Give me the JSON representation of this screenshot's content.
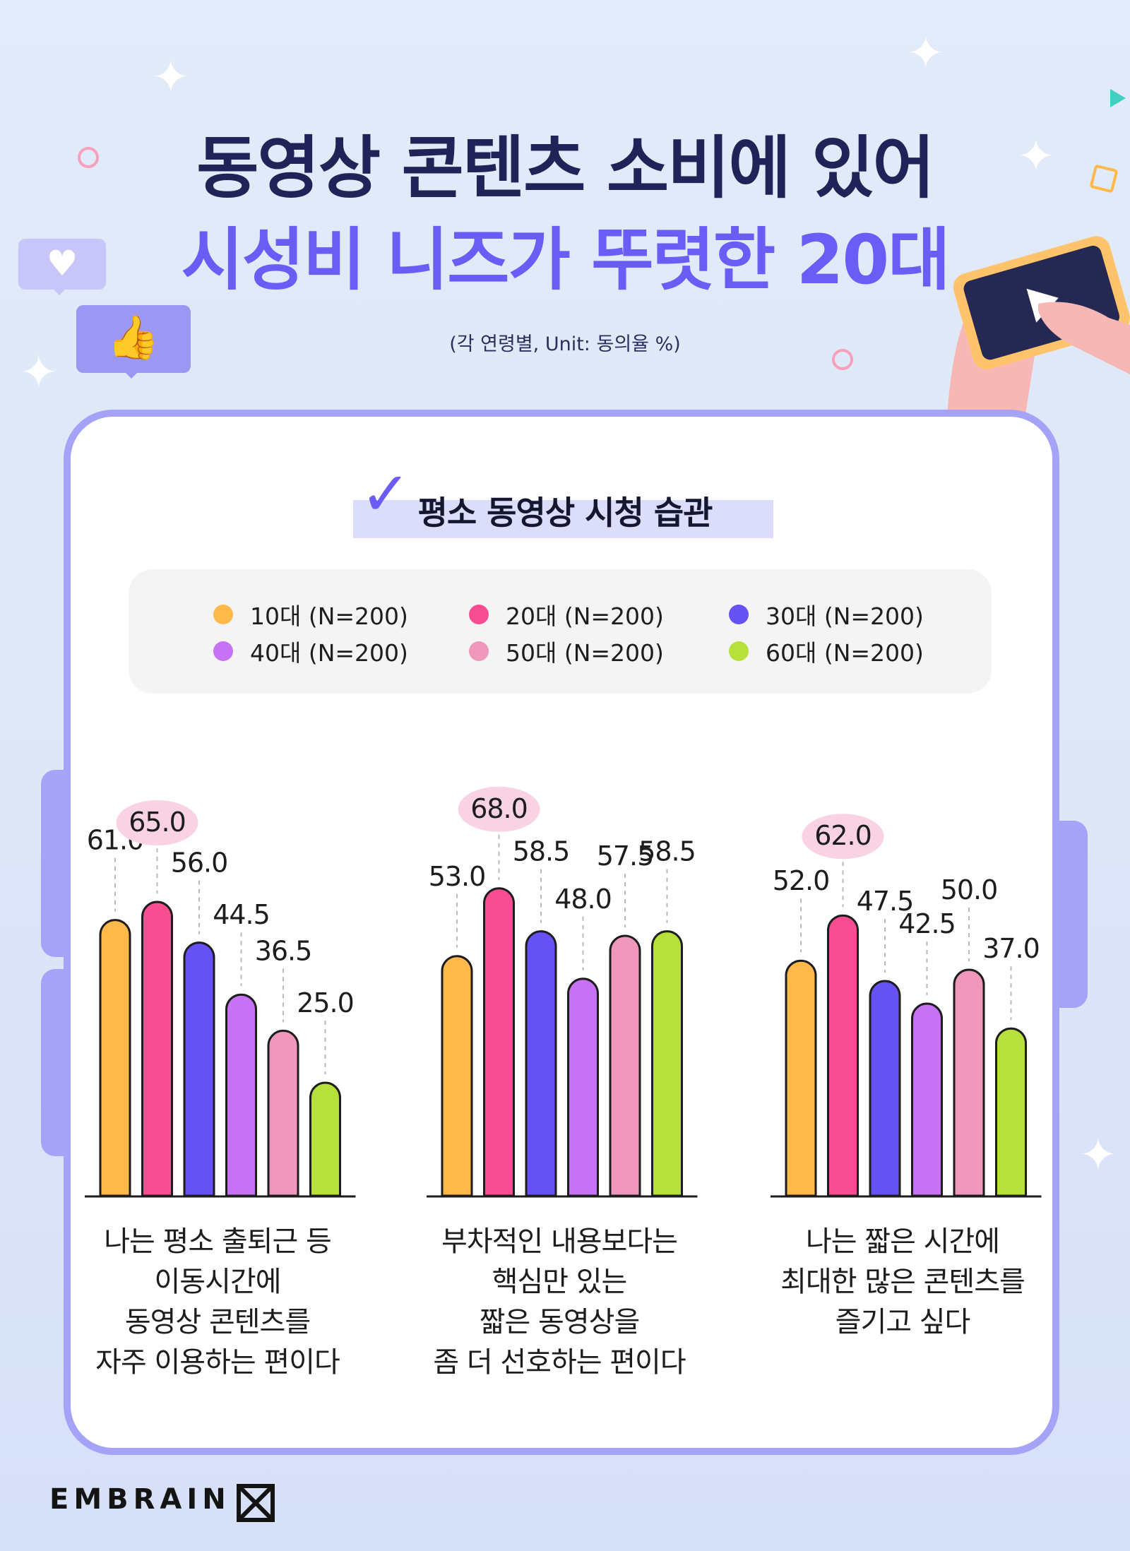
{
  "title_line1": "동영상 콘텐츠 소비에 있어",
  "title_line2": "시성비 니즈가 뚜렷한 20대",
  "subtitle": "(각 연령별, Unit: 동의율 %)",
  "section_title": "평소 동영상 시청 습관",
  "brand": "EMBRAIN",
  "icons": {
    "heart": "heart-icon",
    "thumbs_up": "thumbs-up-icon",
    "check": "check-icon",
    "tablet": "tablet-play-icon"
  },
  "colors": {
    "accent": "#6b5cf6",
    "title_dark": "#1f2357",
    "frame": "#a4a3f8",
    "highlight_badge": "#f9d3e3"
  },
  "chart_data": {
    "type": "bar",
    "legend": [
      {
        "name": "10대 (N=200)",
        "color": "#ffb94b"
      },
      {
        "name": "20대 (N=200)",
        "color": "#f94d92"
      },
      {
        "name": "30대 (N=200)",
        "color": "#6651f5"
      },
      {
        "name": "40대 (N=200)",
        "color": "#c772f4"
      },
      {
        "name": "50대 (N=200)",
        "color": "#ef98bc"
      },
      {
        "name": "60대 (N=200)",
        "color": "#b7e03b"
      }
    ],
    "groups": [
      {
        "label": "나는 평소 출퇴근 등\n이동시간에\n동영상 콘텐츠를\n자주 이용하는 편이다",
        "values": [
          61.0,
          65.0,
          56.0,
          44.5,
          36.5,
          25.0
        ],
        "highlight": 1
      },
      {
        "label": "부차적인 내용보다는\n핵심만 있는\n짧은 동영상을\n좀 더 선호하는 편이다",
        "values": [
          53.0,
          68.0,
          58.5,
          48.0,
          57.5,
          58.5
        ],
        "highlight": 1
      },
      {
        "label": "나는 짧은 시간에\n최대한 많은 콘텐츠를\n즐기고 싶다",
        "values": [
          52.0,
          62.0,
          47.5,
          42.5,
          50.0,
          37.0
        ],
        "highlight": 1
      }
    ],
    "value_format": "one-decimal",
    "highlight_max_in_badge": true
  }
}
